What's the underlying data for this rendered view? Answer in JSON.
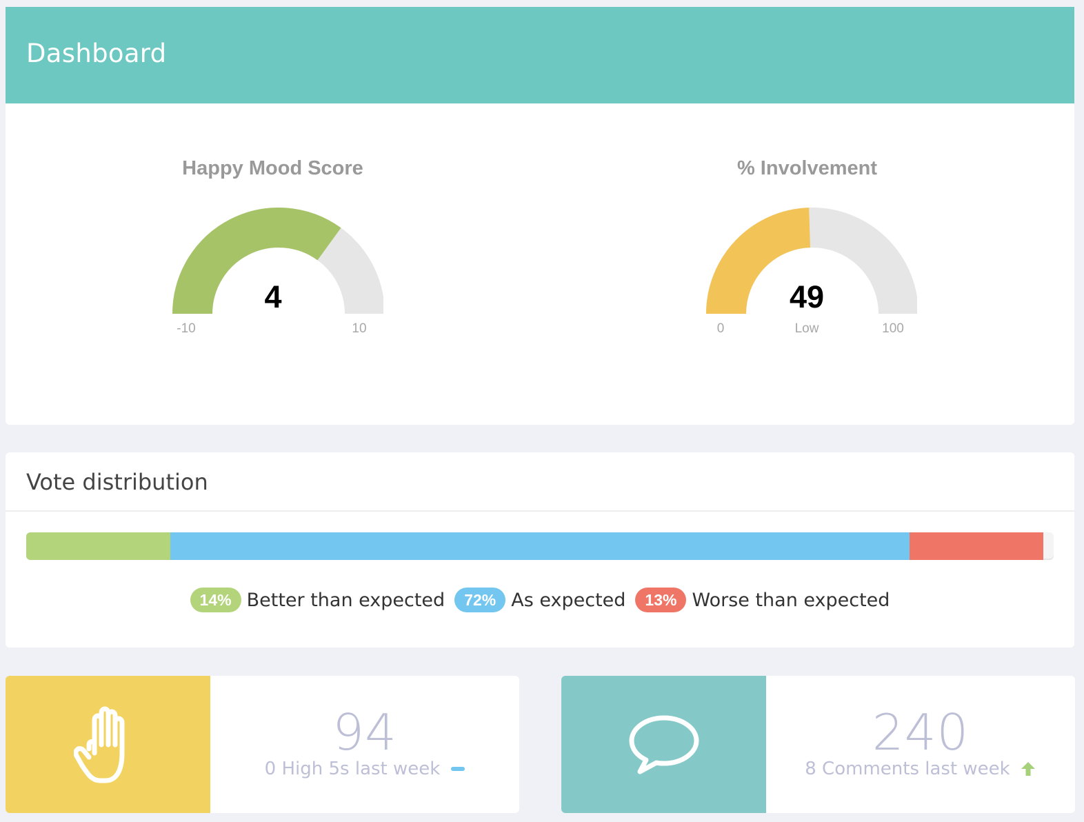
{
  "header": {
    "title": "Dashboard",
    "background": "#6cc8c0"
  },
  "gauges": [
    {
      "title": "Happy Mood Score",
      "value": "4",
      "numeric_value": 4,
      "min": "-10",
      "max": "10",
      "min_value": -10,
      "max_value": 10,
      "status": "",
      "color": "#a6c467",
      "track_color": "#e6e6e6"
    },
    {
      "title": "% Involvement",
      "value": "49",
      "numeric_value": 49,
      "min": "0",
      "max": "100",
      "min_value": 0,
      "max_value": 100,
      "status": "Low",
      "color": "#f2c357",
      "track_color": "#e6e6e6"
    }
  ],
  "vote_distribution": {
    "title": "Vote distribution",
    "segments": [
      {
        "percent_label": "14%",
        "percent": 14,
        "label": "Better than expected",
        "color": "#b3d47a"
      },
      {
        "percent_label": "72%",
        "percent": 72,
        "label": "As expected",
        "color": "#72c6ef"
      },
      {
        "percent_label": "13%",
        "percent": 13,
        "label": "Worse than expected",
        "color": "#ef7567"
      }
    ]
  },
  "stats": [
    {
      "icon": "hand-icon",
      "icon_bg": "#f2d362",
      "number": "94",
      "caption": "0 High 5s last week",
      "trend": "flat",
      "trend_color": "#72c6ef"
    },
    {
      "icon": "speech-bubble-icon",
      "icon_bg": "#84c9c7",
      "number": "240",
      "caption": "8 Comments last week",
      "trend": "up",
      "trend_color": "#a6d07a"
    }
  ]
}
